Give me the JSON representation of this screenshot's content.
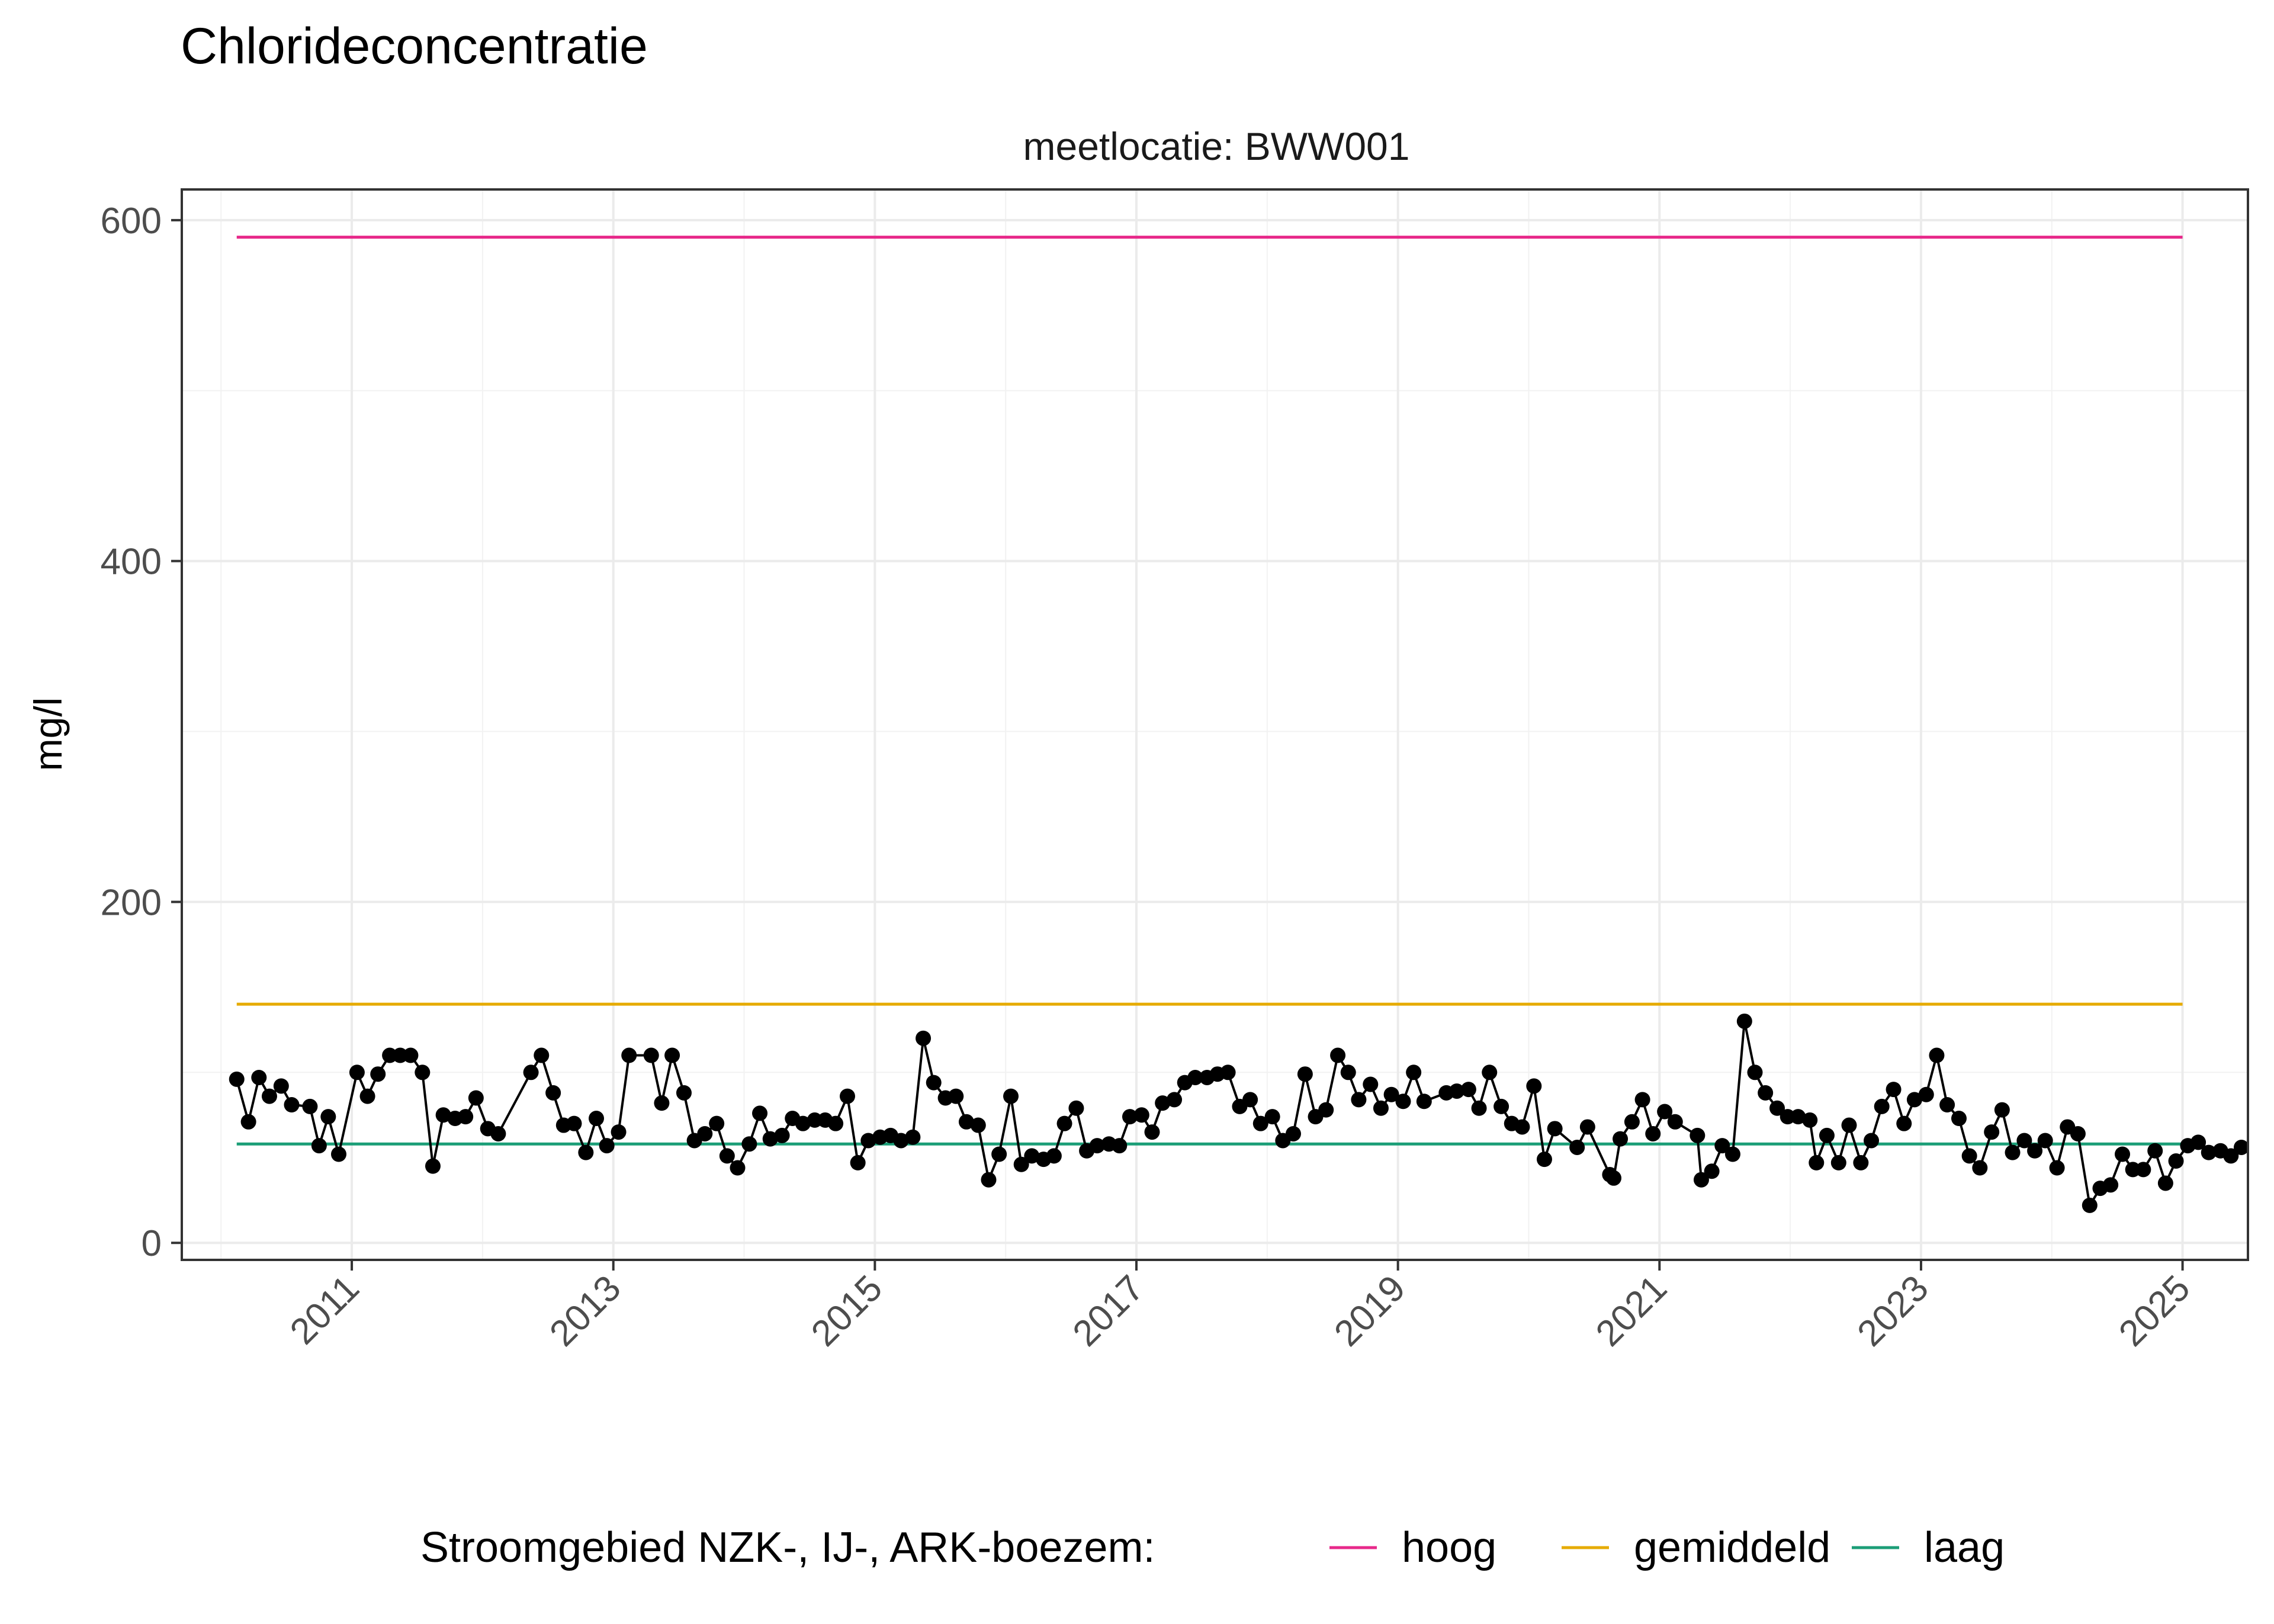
{
  "chart_data": {
    "type": "line",
    "title": "Chlorideconcentratie",
    "facet_label": "meetlocatie: BWW001",
    "xlabel": "",
    "ylabel": "mg/l",
    "xlim": [
      2009.7,
      2025.5
    ],
    "ylim": [
      -10,
      618
    ],
    "x_ticks": [
      2011,
      2013,
      2015,
      2017,
      2019,
      2021,
      2023,
      2025
    ],
    "x_tick_labels": [
      "2011",
      "2013",
      "2015",
      "2017",
      "2019",
      "2021",
      "2023",
      "2025"
    ],
    "y_ticks": [
      0,
      200,
      400,
      600
    ],
    "y_tick_labels": [
      "0",
      "200",
      "400",
      "600"
    ],
    "grid": true,
    "legend": {
      "title": "Stroomgebied NZK-, IJ-, ARK-boezem:",
      "position": "bottom",
      "entries": [
        {
          "name": "hoog",
          "color": "#E7298A"
        },
        {
          "name": "gemiddeld",
          "color": "#E6AB02"
        },
        {
          "name": "laag",
          "color": "#1B9E77"
        }
      ]
    },
    "reference_lines": [
      {
        "name": "hoog",
        "value": 590,
        "x_from": 2010.12,
        "x_to": 2025.0,
        "color": "#E7298A"
      },
      {
        "name": "gemiddeld",
        "value": 140,
        "x_from": 2010.12,
        "x_to": 2025.0,
        "color": "#E6AB02"
      },
      {
        "name": "laag",
        "value": 58,
        "x_from": 2010.12,
        "x_to": 2025.0,
        "color": "#1B9E77"
      }
    ],
    "series": [
      {
        "color": "#000000",
        "points": [
          [
            2010.12,
            96
          ],
          [
            2010.21,
            71
          ],
          [
            2010.29,
            97
          ],
          [
            2010.37,
            86
          ],
          [
            2010.46,
            92
          ],
          [
            2010.54,
            81
          ],
          [
            2010.68,
            80
          ],
          [
            2010.75,
            57
          ],
          [
            2010.82,
            74
          ],
          [
            2010.9,
            52
          ],
          [
            2011.04,
            100
          ],
          [
            2011.12,
            86
          ],
          [
            2011.2,
            99
          ],
          [
            2011.29,
            110
          ],
          [
            2011.37,
            110
          ],
          [
            2011.45,
            110
          ],
          [
            2011.54,
            100
          ],
          [
            2011.62,
            45
          ],
          [
            2011.7,
            75
          ],
          [
            2011.79,
            73
          ],
          [
            2011.87,
            74
          ],
          [
            2011.95,
            85
          ],
          [
            2012.04,
            67
          ],
          [
            2012.12,
            64
          ],
          [
            2012.37,
            100
          ],
          [
            2012.45,
            110
          ],
          [
            2012.54,
            88
          ],
          [
            2012.62,
            69
          ],
          [
            2012.7,
            70
          ],
          [
            2012.79,
            53
          ],
          [
            2012.87,
            73
          ],
          [
            2012.95,
            57
          ],
          [
            2013.04,
            65
          ],
          [
            2013.12,
            110
          ],
          [
            2013.29,
            110
          ],
          [
            2013.37,
            82
          ],
          [
            2013.45,
            110
          ],
          [
            2013.54,
            88
          ],
          [
            2013.62,
            60
          ],
          [
            2013.7,
            64
          ],
          [
            2013.79,
            70
          ],
          [
            2013.87,
            51
          ],
          [
            2013.95,
            44
          ],
          [
            2014.04,
            58
          ],
          [
            2014.12,
            76
          ],
          [
            2014.2,
            61
          ],
          [
            2014.29,
            63
          ],
          [
            2014.37,
            73
          ],
          [
            2014.45,
            70
          ],
          [
            2014.54,
            72
          ],
          [
            2014.62,
            72
          ],
          [
            2014.7,
            70
          ],
          [
            2014.79,
            86
          ],
          [
            2014.87,
            47
          ],
          [
            2014.95,
            60
          ],
          [
            2015.04,
            62
          ],
          [
            2015.12,
            63
          ],
          [
            2015.2,
            60
          ],
          [
            2015.29,
            62
          ],
          [
            2015.37,
            120
          ],
          [
            2015.45,
            94
          ],
          [
            2015.54,
            85
          ],
          [
            2015.62,
            86
          ],
          [
            2015.7,
            71
          ],
          [
            2015.79,
            69
          ],
          [
            2015.87,
            37
          ],
          [
            2015.95,
            52
          ],
          [
            2016.04,
            86
          ],
          [
            2016.12,
            46
          ],
          [
            2016.2,
            51
          ],
          [
            2016.29,
            49
          ],
          [
            2016.37,
            51
          ],
          [
            2016.45,
            70
          ],
          [
            2016.54,
            79
          ],
          [
            2016.62,
            54
          ],
          [
            2016.7,
            57
          ],
          [
            2016.79,
            58
          ],
          [
            2016.87,
            57
          ],
          [
            2016.95,
            74
          ],
          [
            2017.04,
            75
          ],
          [
            2017.12,
            65
          ],
          [
            2017.2,
            82
          ],
          [
            2017.29,
            84
          ],
          [
            2017.37,
            94
          ],
          [
            2017.45,
            97
          ],
          [
            2017.54,
            97
          ],
          [
            2017.62,
            99
          ],
          [
            2017.7,
            100
          ],
          [
            2017.79,
            80
          ],
          [
            2017.87,
            84
          ],
          [
            2017.95,
            70
          ],
          [
            2018.04,
            74
          ],
          [
            2018.12,
            60
          ],
          [
            2018.2,
            64
          ],
          [
            2018.29,
            99
          ],
          [
            2018.37,
            74
          ],
          [
            2018.45,
            78
          ],
          [
            2018.54,
            110
          ],
          [
            2018.62,
            100
          ],
          [
            2018.7,
            84
          ],
          [
            2018.79,
            93
          ],
          [
            2018.87,
            79
          ],
          [
            2018.95,
            87
          ],
          [
            2019.04,
            83
          ],
          [
            2019.12,
            100
          ],
          [
            2019.2,
            83
          ],
          [
            2019.37,
            88
          ],
          [
            2019.45,
            89
          ],
          [
            2019.54,
            90
          ],
          [
            2019.62,
            79
          ],
          [
            2019.7,
            100
          ],
          [
            2019.79,
            80
          ],
          [
            2019.87,
            70
          ],
          [
            2019.95,
            68
          ],
          [
            2020.04,
            92
          ],
          [
            2020.12,
            49
          ],
          [
            2020.2,
            67
          ],
          [
            2020.37,
            56
          ],
          [
            2020.45,
            68
          ],
          [
            2020.62,
            40
          ],
          [
            2020.65,
            38
          ],
          [
            2020.7,
            61
          ],
          [
            2020.79,
            71
          ],
          [
            2020.87,
            84
          ],
          [
            2020.95,
            64
          ],
          [
            2021.04,
            77
          ],
          [
            2021.12,
            71
          ],
          [
            2021.29,
            63
          ],
          [
            2021.32,
            37
          ],
          [
            2021.4,
            42
          ],
          [
            2021.48,
            57
          ],
          [
            2021.56,
            52
          ],
          [
            2021.65,
            130
          ],
          [
            2021.73,
            100
          ],
          [
            2021.81,
            88
          ],
          [
            2021.9,
            79
          ],
          [
            2021.98,
            74
          ],
          [
            2022.06,
            74
          ],
          [
            2022.15,
            72
          ],
          [
            2022.2,
            47
          ],
          [
            2022.28,
            63
          ],
          [
            2022.37,
            47
          ],
          [
            2022.45,
            69
          ],
          [
            2022.54,
            47
          ],
          [
            2022.62,
            60
          ],
          [
            2022.7,
            80
          ],
          [
            2022.79,
            90
          ],
          [
            2022.87,
            70
          ],
          [
            2022.95,
            84
          ],
          [
            2023.04,
            87
          ],
          [
            2023.12,
            110
          ],
          [
            2023.2,
            81
          ],
          [
            2023.29,
            73
          ],
          [
            2023.37,
            51
          ],
          [
            2023.45,
            44
          ],
          [
            2023.54,
            65
          ],
          [
            2023.62,
            78
          ],
          [
            2023.7,
            53
          ],
          [
            2023.79,
            60
          ],
          [
            2023.87,
            54
          ],
          [
            2023.95,
            60
          ],
          [
            2024.04,
            44
          ],
          [
            2024.12,
            68
          ],
          [
            2024.2,
            64
          ],
          [
            2024.29,
            22
          ],
          [
            2024.37,
            32
          ],
          [
            2024.45,
            34
          ],
          [
            2024.54,
            52
          ],
          [
            2024.62,
            43
          ],
          [
            2024.7,
            43
          ],
          [
            2024.79,
            54
          ],
          [
            2024.87,
            35
          ],
          [
            2024.95,
            48
          ],
          [
            2025.04,
            57
          ],
          [
            2025.12,
            59
          ],
          [
            2025.2,
            53
          ],
          [
            2025.29,
            54
          ],
          [
            2025.37,
            51
          ],
          [
            2025.45,
            56
          ]
        ]
      }
    ]
  }
}
